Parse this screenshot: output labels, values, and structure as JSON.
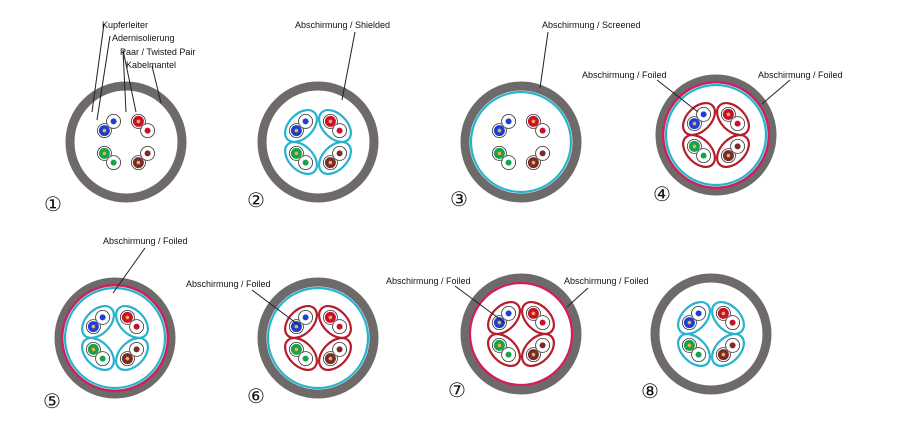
{
  "colors": {
    "jacket": "#6e6a6a",
    "screen_outer": "#25b3cf",
    "foil_outer": "#d81b5f",
    "foil_pair": "#b51d2a",
    "shield_pair": "#25b3cf",
    "conductor_blue": "#1f3fd1",
    "conductor_red": "#c8102e",
    "conductor_green": "#17a34a",
    "conductor_brown": "#7a2a2a",
    "conductor_white": "#ffffff"
  },
  "legend": {
    "copper_conductor": "Kupferleiter",
    "core_insulation": "Adernisolierung",
    "pair": "Paar / Twisted Pair",
    "jacket": "Kabelmantel"
  },
  "labels": {
    "shielded": "Abschirmung / Shielded",
    "screened": "Abschirmung / Screened",
    "foiled": "Abschirmung / Foiled"
  },
  "cables": [
    {
      "number": "①",
      "outer": "none",
      "pair": "none"
    },
    {
      "number": "②",
      "outer": "none",
      "pair": "screen"
    },
    {
      "number": "③",
      "outer": "screen",
      "pair": "none"
    },
    {
      "number": "④",
      "outer": "both",
      "pair": "foil"
    },
    {
      "number": "⑤",
      "outer": "both",
      "pair": "screen"
    },
    {
      "number": "⑥",
      "outer": "screen",
      "pair": "foil"
    },
    {
      "number": "⑦",
      "outer": "foil",
      "pair": "foil"
    },
    {
      "number": "⑧",
      "outer": "none",
      "pair": "screen"
    }
  ]
}
